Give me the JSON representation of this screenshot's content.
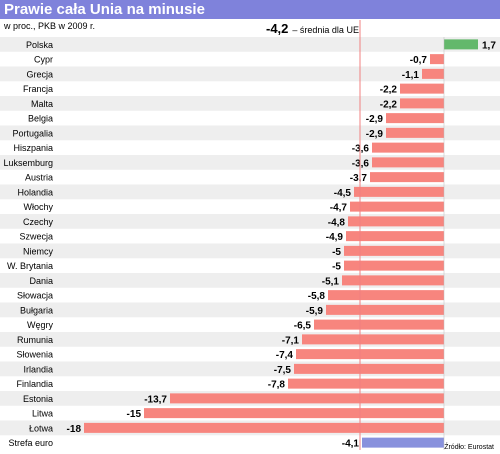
{
  "title": "Prawie cała Unia na minusie",
  "subtitle": "w proc., PKB w 2009 r.",
  "reference": {
    "value": "-4,2",
    "text": "– średnia dla UE",
    "numeric": -4.2
  },
  "source": "Źródło: Eurostat",
  "colors": {
    "title_bar": "#7f82db",
    "negative": "#f7857e",
    "positive": "#63b86b",
    "highlight": "#8891dd",
    "reference_line": "#f08080",
    "row_stripe": "#eeeeee"
  },
  "chart_data": {
    "type": "bar",
    "orientation": "horizontal",
    "title": "Prawie cała Unia na minusie",
    "subtitle": "w proc., PKB w 2009 r.",
    "categories": [
      "Polska",
      "Cypr",
      "Grecja",
      "Francja",
      "Malta",
      "Belgia",
      "Portugalia",
      "Hiszpania",
      "Luksemburg",
      "Austria",
      "Holandia",
      "Włochy",
      "Czechy",
      "Szwecja",
      "Niemcy",
      "W. Brytania",
      "Dania",
      "Słowacja",
      "Bułgaria",
      "Węgry",
      "Rumunia",
      "Słowenia",
      "Irlandia",
      "Finlandia",
      "Estonia",
      "Litwa",
      "Łotwa",
      "Strefa euro"
    ],
    "values": [
      1.7,
      -0.7,
      -1.1,
      -2.2,
      -2.2,
      -2.9,
      -2.9,
      -3.6,
      -3.6,
      -3.7,
      -4.5,
      -4.7,
      -4.8,
      -4.9,
      -5,
      -5,
      -5.1,
      -5.8,
      -5.9,
      -6.5,
      -7.1,
      -7.4,
      -7.5,
      -7.8,
      -13.7,
      -15,
      -18,
      -4.1
    ],
    "value_labels": [
      "1,7",
      "-0,7",
      "-1,1",
      "-2,2",
      "-2,2",
      "-2,9",
      "-2,9",
      "-3,6",
      "-3,6",
      "-3,7",
      "-4,5",
      "-4,7",
      "-4,8",
      "-4,9",
      "-5",
      "-5",
      "-5,1",
      "-5,8",
      "-5,9",
      "-6,5",
      "-7,1",
      "-7,4",
      "-7,5",
      "-7,8",
      "-13,7",
      "-15",
      "-18",
      "-4,1"
    ],
    "xlim": [
      -18,
      1.7
    ],
    "reference_line": -4.2,
    "grid": false,
    "legend": "none"
  }
}
